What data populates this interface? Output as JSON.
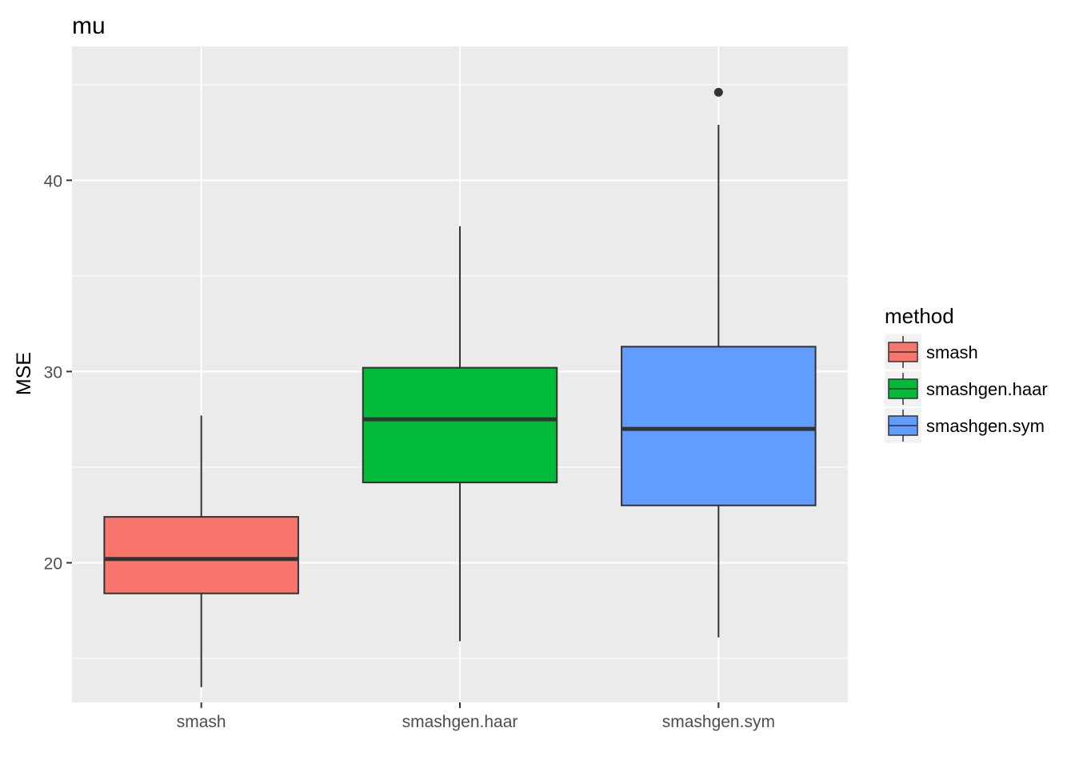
{
  "chart_data": {
    "type": "boxplot",
    "title": "mu",
    "xlabel": "",
    "ylabel": "MSE",
    "ylim": [
      12.7,
      47.0
    ],
    "y_ticks": [
      20,
      30,
      40
    ],
    "y_tick_labels": [
      "20",
      "30",
      "40"
    ],
    "y_minor_ticks": [
      15,
      25,
      35,
      45
    ],
    "grid": true,
    "legend": {
      "title": "method",
      "position": "right",
      "entries": [
        "smash",
        "smashgen.haar",
        "smashgen.sym"
      ]
    },
    "categories": [
      "smash",
      "smashgen.haar",
      "smashgen.sym"
    ],
    "colors": [
      "#F8766D",
      "#00BA38",
      "#619CFF"
    ],
    "boxes": [
      {
        "category": "smash",
        "min": 13.5,
        "q1": 18.4,
        "median": 20.2,
        "q3": 22.4,
        "max": 27.7,
        "outliers": []
      },
      {
        "category": "smashgen.haar",
        "min": 15.9,
        "q1": 24.2,
        "median": 27.5,
        "q3": 30.2,
        "max": 37.6,
        "outliers": []
      },
      {
        "category": "smashgen.sym",
        "min": 16.1,
        "q1": 23.0,
        "median": 27.0,
        "q3": 31.3,
        "max": 42.9,
        "outliers": [
          44.6
        ]
      }
    ]
  }
}
